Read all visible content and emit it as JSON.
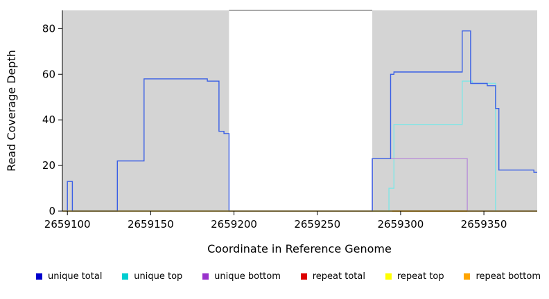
{
  "chart_data": {
    "type": "line",
    "title": "",
    "xlabel": "Coordinate in Reference Genome",
    "ylabel": "Read Coverage Depth",
    "xlim": [
      2659097,
      2659382
    ],
    "ylim": [
      0,
      88
    ],
    "x_ticks": [
      2659100,
      2659150,
      2659200,
      2659250,
      2659300,
      2659350
    ],
    "y_ticks": [
      0,
      20,
      40,
      60,
      80
    ],
    "grid": false,
    "legend_position": "bottom",
    "shade_color": "#D4D4D4",
    "shaded_regions": [
      {
        "from": 2659097,
        "to": 2659197
      },
      {
        "from": 2659283,
        "to": 2659382
      }
    ],
    "series": [
      {
        "name": "unique total",
        "color": "#0000CD",
        "line_color": "#3A5FE5",
        "z": 3,
        "points": [
          [
            2659097,
            0
          ],
          [
            2659100,
            13
          ],
          [
            2659103,
            0
          ],
          [
            2659130,
            22
          ],
          [
            2659146,
            58
          ],
          [
            2659184,
            57
          ],
          [
            2659191,
            35
          ],
          [
            2659194,
            34
          ],
          [
            2659197,
            0
          ],
          [
            2659283,
            23
          ],
          [
            2659294,
            60
          ],
          [
            2659296,
            61
          ],
          [
            2659337,
            79
          ],
          [
            2659342,
            56
          ],
          [
            2659352,
            55
          ],
          [
            2659357,
            45
          ],
          [
            2659359,
            18
          ],
          [
            2659380,
            17
          ],
          [
            2659382,
            17
          ]
        ]
      },
      {
        "name": "unique top",
        "color": "#00CED1",
        "line_color": "#7EE6E6",
        "z": 1,
        "points": [
          [
            2659283,
            0
          ],
          [
            2659293,
            10
          ],
          [
            2659296,
            38
          ],
          [
            2659337,
            57
          ],
          [
            2659343,
            56
          ],
          [
            2659357,
            0
          ]
        ]
      },
      {
        "name": "unique bottom",
        "color": "#9932CC",
        "line_color": "#B88FD8",
        "z": 2,
        "points": [
          [
            2659283,
            0
          ],
          [
            2659283,
            23
          ],
          [
            2659340,
            0
          ],
          [
            2659382,
            0
          ]
        ]
      },
      {
        "name": "repeat total",
        "color": "#DD0000",
        "line_color": "#F07575",
        "z": 4,
        "points": [
          [
            2659097,
            0
          ],
          [
            2659382,
            0
          ]
        ]
      },
      {
        "name": "repeat top",
        "color": "#FFFF00",
        "line_color": "#FFFF33",
        "z": 5,
        "points": [
          [
            2659097,
            0
          ],
          [
            2659382,
            0
          ]
        ]
      },
      {
        "name": "repeat bottom",
        "color": "#FFA500",
        "line_color": "#FFA500",
        "z": 6,
        "points": [
          [
            2659295,
            0
          ],
          [
            2659340,
            0
          ]
        ]
      }
    ]
  }
}
